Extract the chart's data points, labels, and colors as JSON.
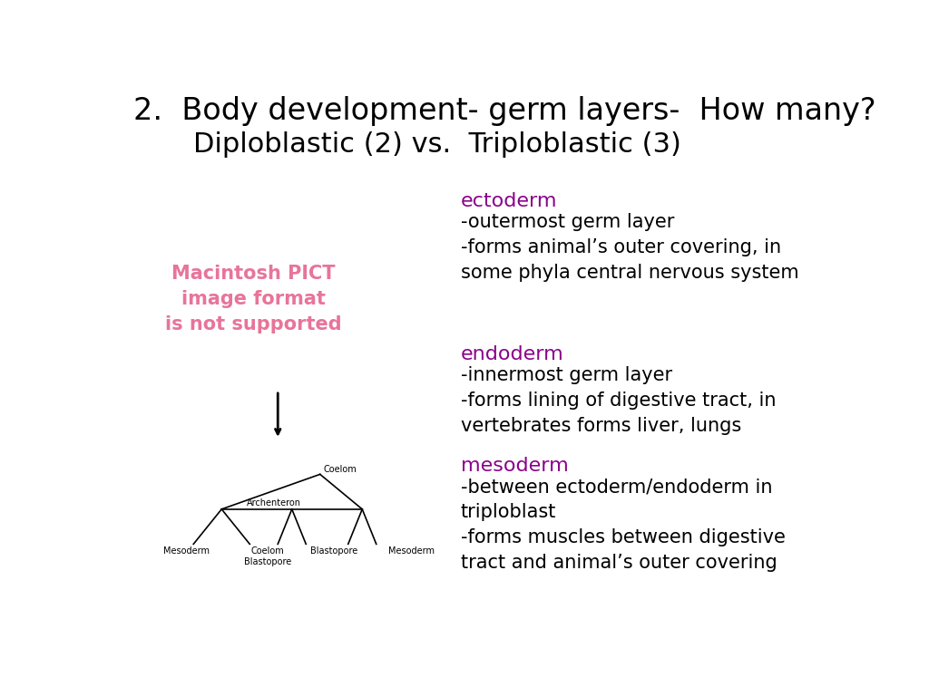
{
  "title_line1": "2.  Body development- germ layers-  How many?",
  "title_line2": "Diploblastic (2) vs.  Triploblastic (3)",
  "title_fontsize": 24,
  "subtitle_fontsize": 22,
  "background_color": "#ffffff",
  "text_color": "#000000",
  "purple_color": "#8B008B",
  "pink_color": "#E8749A",
  "left_panel_text": "Macintosh PICT\nimage format\nis not supported",
  "ectoderm_header": "ectoderm",
  "ectoderm_body": "-outermost germ layer\n-forms animal’s outer covering, in\nsome phyla central nervous system",
  "endoderm_header": "endoderm",
  "endoderm_body": "-innermost germ layer\n-forms lining of digestive tract, in\nvertebrates forms liver, lungs",
  "mesoderm_header": "mesoderm",
  "mesoderm_body": "-between ectoderm/endoderm in\ntriploblast\n-forms muscles between digestive\ntract and animal’s outer covering",
  "body_fontsize": 15,
  "header_fontsize": 16,
  "diagram_fontsize": 7
}
